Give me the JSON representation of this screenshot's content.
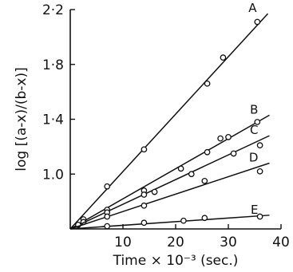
{
  "chart_data": {
    "type": "scatter",
    "xlabel": "Time × 10⁻³ (sec.)",
    "ylabel": "log [(a-x)/(b-x)]",
    "xlim": [
      0,
      40
    ],
    "ylim": [
      0.6,
      2.2
    ],
    "x_ticks": [
      10,
      20,
      30,
      40
    ],
    "x_tick_labels": [
      "10",
      "20",
      "30",
      "40"
    ],
    "y_ticks": [
      1.0,
      1.4,
      1.8,
      2.2
    ],
    "y_tick_labels": [
      "1.0",
      "1·4",
      "1·8",
      "2·2"
    ],
    "grid": false,
    "series": [
      {
        "name": "A",
        "points": [
          [
            2.5,
            0.67
          ],
          [
            7.0,
            0.91
          ],
          [
            14.0,
            1.18
          ],
          [
            26.0,
            1.66
          ],
          [
            29.0,
            1.85
          ],
          [
            35.5,
            2.11
          ]
        ],
        "line": [
          [
            0,
            0.6
          ],
          [
            37.5,
            2.17
          ]
        ]
      },
      {
        "name": "B",
        "points": [
          [
            2.5,
            0.65
          ],
          [
            7.0,
            0.74
          ],
          [
            14.0,
            0.88
          ],
          [
            21.0,
            1.04
          ],
          [
            26.0,
            1.16
          ],
          [
            30.0,
            1.27
          ],
          [
            35.5,
            1.38
          ]
        ],
        "line": [
          [
            0,
            0.6
          ],
          [
            37.8,
            1.43
          ]
        ]
      },
      {
        "name": "C",
        "points": [
          [
            1.5,
            0.63
          ],
          [
            7.0,
            0.72
          ],
          [
            14.0,
            0.85
          ],
          [
            16.0,
            0.87
          ],
          [
            23.0,
            1.0
          ],
          [
            28.5,
            1.26
          ],
          [
            31.0,
            1.15
          ],
          [
            36.0,
            1.21
          ]
        ],
        "line": [
          [
            0,
            0.6
          ],
          [
            37.8,
            1.28
          ]
        ]
      },
      {
        "name": "D",
        "points": [
          [
            7.0,
            0.69
          ],
          [
            14.0,
            0.77
          ],
          [
            25.5,
            0.95
          ],
          [
            36.0,
            1.02
          ]
        ],
        "line": [
          [
            0,
            0.6
          ],
          [
            37.8,
            1.08
          ]
        ]
      },
      {
        "name": "E",
        "points": [
          [
            7.0,
            0.62
          ],
          [
            14.0,
            0.645
          ],
          [
            21.5,
            0.66
          ],
          [
            25.5,
            0.68
          ],
          [
            36.0,
            0.69
          ]
        ],
        "line": [
          [
            0,
            0.6
          ],
          [
            37.8,
            0.7
          ]
        ]
      }
    ]
  }
}
